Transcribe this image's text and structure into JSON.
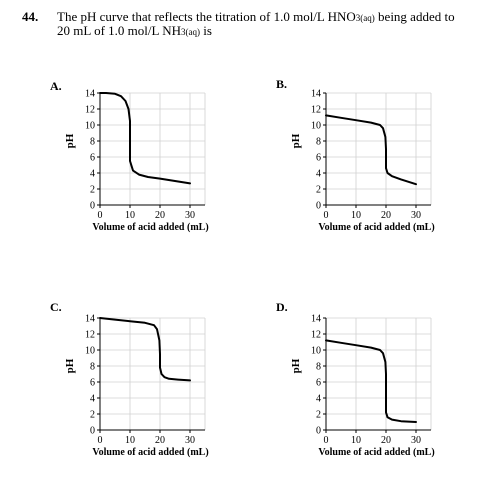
{
  "question": {
    "number": "44.",
    "line1_a": "The pH curve that reflects the titration of 1.0 mol/L HNO",
    "line1_sub": "3(aq)",
    "line1_b": " being added to",
    "line2_a": "20 mL of 1.0 mol/L NH",
    "line2_sub": "3(aq)",
    "line2_b": " is"
  },
  "chart_data": [
    {
      "type": "line",
      "option": "A.",
      "xlabel": "Volume of acid added (mL)",
      "ylabel": "pH",
      "xticks": [
        "0",
        "10",
        "20",
        "30"
      ],
      "yticks": [
        "0",
        "2",
        "4",
        "6",
        "8",
        "10",
        "12",
        "14"
      ],
      "xlim": [
        0,
        35
      ],
      "ylim": [
        0,
        14
      ],
      "grid": true,
      "series": [
        {
          "x": [
            0,
            2,
            5,
            7,
            8.5,
            9.5,
            10,
            10,
            11,
            13,
            16,
            20,
            25,
            30
          ],
          "y": [
            14,
            14,
            13.9,
            13.6,
            13,
            12,
            10.5,
            5.5,
            4.3,
            3.8,
            3.5,
            3.3,
            3.0,
            2.7
          ]
        }
      ]
    },
    {
      "type": "line",
      "option": "B.",
      "xlabel": "Volume of acid added (mL)",
      "ylabel": "pH",
      "xticks": [
        "0",
        "10",
        "20",
        "30"
      ],
      "yticks": [
        "0",
        "2",
        "4",
        "6",
        "8",
        "10",
        "12",
        "14"
      ],
      "xlim": [
        0,
        35
      ],
      "ylim": [
        0,
        14
      ],
      "grid": true,
      "series": [
        {
          "x": [
            0,
            5,
            10,
            15,
            18,
            19,
            19.8,
            20,
            20,
            20.5,
            22,
            25,
            30
          ],
          "y": [
            11.2,
            10.9,
            10.6,
            10.3,
            10,
            9.6,
            8.5,
            7,
            4.6,
            4.0,
            3.6,
            3.2,
            2.6
          ]
        }
      ]
    },
    {
      "type": "line",
      "option": "C.",
      "xlabel": "Volume of acid added (mL)",
      "ylabel": "pH",
      "xticks": [
        "0",
        "10",
        "20",
        "30"
      ],
      "yticks": [
        "0",
        "2",
        "4",
        "6",
        "8",
        "10",
        "12",
        "14"
      ],
      "xlim": [
        0,
        35
      ],
      "ylim": [
        0,
        14
      ],
      "grid": true,
      "series": [
        {
          "x": [
            0,
            5,
            10,
            15,
            18,
            19,
            19.8,
            20,
            20,
            20.5,
            21.5,
            23,
            26,
            30
          ],
          "y": [
            14,
            13.8,
            13.6,
            13.4,
            13.1,
            12.6,
            11.2,
            9.5,
            7.8,
            7.0,
            6.6,
            6.4,
            6.3,
            6.2
          ]
        }
      ]
    },
    {
      "type": "line",
      "option": "D.",
      "xlabel": "Volume of acid added (mL)",
      "ylabel": "pH",
      "xticks": [
        "0",
        "10",
        "20",
        "30"
      ],
      "yticks": [
        "0",
        "2",
        "4",
        "6",
        "8",
        "10",
        "12",
        "14"
      ],
      "xlim": [
        0,
        35
      ],
      "ylim": [
        0,
        14
      ],
      "grid": true,
      "series": [
        {
          "x": [
            0,
            5,
            10,
            15,
            18,
            19,
            19.8,
            20,
            20,
            20.5,
            22,
            25,
            30
          ],
          "y": [
            11.2,
            10.9,
            10.6,
            10.3,
            10,
            9.6,
            8.5,
            7,
            2.2,
            1.6,
            1.3,
            1.1,
            1.0
          ]
        }
      ]
    }
  ]
}
